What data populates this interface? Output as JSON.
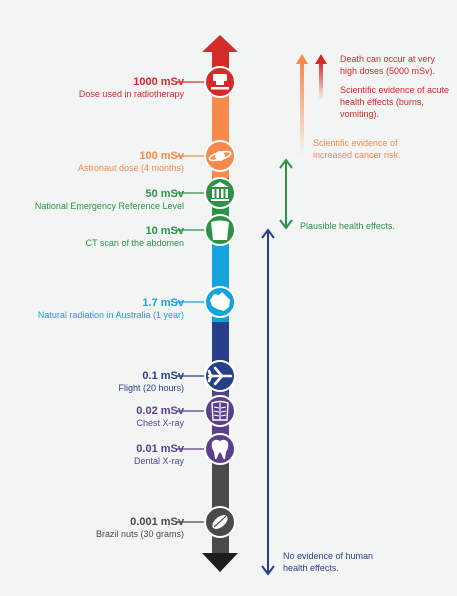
{
  "colors": {
    "red": "#d42a2a",
    "orange": "#f58a4b",
    "green": "#2e9148",
    "light_blue": "#14a3dc",
    "navy": "#2a3f8a",
    "purple": "#5a3f8f",
    "gray": "#4a4a4a",
    "black": "#1e1e1e"
  },
  "levels": [
    {
      "value": "1000 mSv",
      "desc": "Dose used in radiotherapy",
      "icon": "radiotherapy-machine-icon",
      "color": "#d42a2a"
    },
    {
      "value": "100 mSv",
      "desc": "Astronaut dose (4 months)",
      "icon": "planet-icon",
      "color": "#f58a4b"
    },
    {
      "value": "50 mSv",
      "desc": "National Emergency Reference Level",
      "icon": "building-icon",
      "color": "#2e9148"
    },
    {
      "value": "10 mSv",
      "desc": "CT scan of the abdomen",
      "icon": "torso-icon",
      "color": "#2e9148"
    },
    {
      "value": "1.7 mSv",
      "desc": "Natural radiation in Australia (1 year)",
      "icon": "australia-map-icon",
      "color": "#14a3dc"
    },
    {
      "value": "0.1 mSv",
      "desc": "Flight (20 hours)",
      "icon": "airplane-icon",
      "color": "#2a3f8a"
    },
    {
      "value": "0.02 mSv",
      "desc": "Chest X-ray",
      "icon": "chest-xray-icon",
      "color": "#5a3f8f"
    },
    {
      "value": "0.01 mSv",
      "desc": "Dental X-ray",
      "icon": "tooth-icon",
      "color": "#5a3f8f"
    },
    {
      "value": "0.001 mSv",
      "desc": "Brazil nuts (30 grams)",
      "icon": "brazil-nut-icon",
      "color": "#4a4a4a"
    }
  ],
  "effects": {
    "death": "Death can occur at very high doses (5000 mSv).",
    "acute": "Scientific evidence of acute health effects (burns, vomiting).",
    "cancer": "Scientific evidence of increased cancer risk.",
    "plausible": "Plausible health effects.",
    "none": "No evidence of human health effects."
  }
}
